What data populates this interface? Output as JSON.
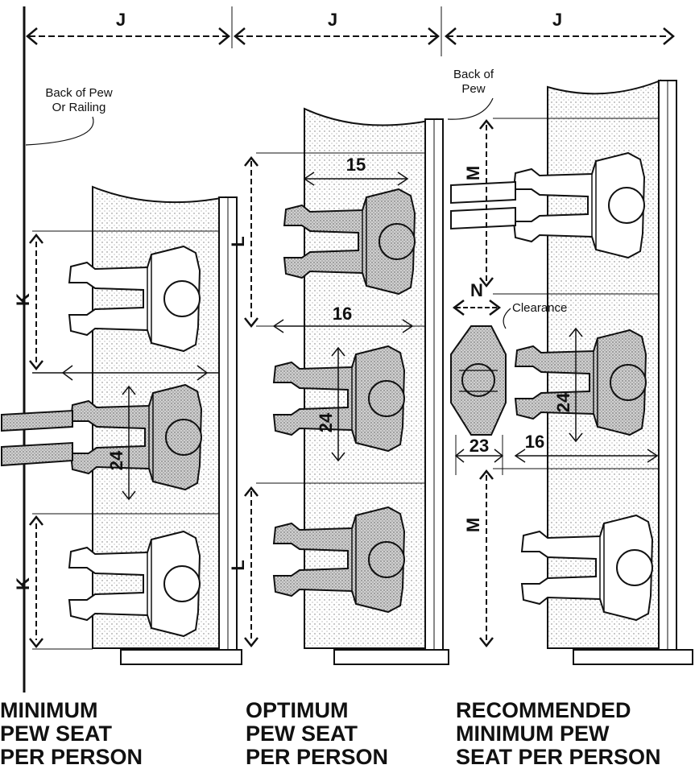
{
  "dimensions": {
    "j": "J",
    "k": "K",
    "l": "L",
    "m": "M",
    "n": "N",
    "d15": "15",
    "d16": "16",
    "d23": "23",
    "d24": "24"
  },
  "notes": {
    "back_of_pew_railing_line1": "Back of Pew",
    "back_of_pew_railing_line2": "Or Railing",
    "back_of_pew_line1": "Back of",
    "back_of_pew_line2": "Pew",
    "clearance": "Clearance"
  },
  "panels": [
    {
      "title_lines": [
        "MINIMUM",
        "PEW SEAT",
        "PER PERSON"
      ]
    },
    {
      "title_lines": [
        "OPTIMUM",
        "PEW SEAT",
        "PER PERSON"
      ]
    },
    {
      "title_lines": [
        "RECOMMENDED",
        "MINIMUM PEW",
        "SEAT PER PERSON"
      ]
    }
  ],
  "colors": {
    "ink": "#111111",
    "shade": "#c8c8c8",
    "figure_fill": "#ffffff",
    "figure_dark": "#bdbdbd"
  }
}
